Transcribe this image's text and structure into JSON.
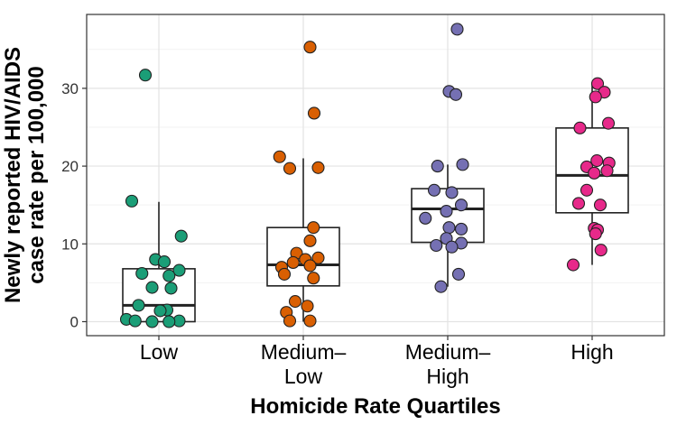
{
  "chart_data": {
    "type": "boxplot",
    "xlabel": "Homicide Rate Quartiles",
    "ylabel_lines": [
      "Newly reported HIV/AIDS",
      "case rate per 100,000"
    ],
    "ylim": [
      -1.8,
      39.5
    ],
    "yticks": [
      0,
      10,
      20,
      30
    ],
    "grid": true,
    "groups": [
      {
        "name_lines": [
          "Low"
        ],
        "color": "#1b9e77",
        "box": {
          "min": 0,
          "q1": 0,
          "median": 2.1,
          "q3": 6.8,
          "max": 15.4
        },
        "points": [
          {
            "value": 31.7,
            "offset": -0.2
          },
          {
            "value": 15.5,
            "offset": -0.4
          },
          {
            "value": 11.0,
            "offset": 0.33
          },
          {
            "value": 8.0,
            "offset": -0.05
          },
          {
            "value": 7.7,
            "offset": 0.08
          },
          {
            "value": 6.6,
            "offset": 0.3
          },
          {
            "value": 6.2,
            "offset": -0.25
          },
          {
            "value": 5.9,
            "offset": 0.15
          },
          {
            "value": 4.4,
            "offset": -0.1
          },
          {
            "value": 4.3,
            "offset": 0.18
          },
          {
            "value": 2.1,
            "offset": -0.3
          },
          {
            "value": 1.5,
            "offset": 0.12
          },
          {
            "value": 1.4,
            "offset": 0.02
          },
          {
            "value": 0.3,
            "offset": -0.48
          },
          {
            "value": 0.1,
            "offset": -0.35
          },
          {
            "value": 0.1,
            "offset": 0.3
          },
          {
            "value": 0.0,
            "offset": 0.15
          },
          {
            "value": 0.0,
            "offset": -0.1
          }
        ]
      },
      {
        "name_lines": [
          "Medium–",
          "Low"
        ],
        "color": "#d95f02",
        "box": {
          "min": 0,
          "q1": 4.6,
          "median": 7.3,
          "q3": 12.1,
          "max": 21.0
        },
        "points": [
          {
            "value": 35.3,
            "offset": 0.1
          },
          {
            "value": 26.8,
            "offset": 0.16
          },
          {
            "value": 21.2,
            "offset": -0.35
          },
          {
            "value": 19.8,
            "offset": 0.22
          },
          {
            "value": 19.7,
            "offset": -0.2
          },
          {
            "value": 12.1,
            "offset": 0.15
          },
          {
            "value": 10.4,
            "offset": 0.1
          },
          {
            "value": 8.8,
            "offset": -0.1
          },
          {
            "value": 8.2,
            "offset": 0.22
          },
          {
            "value": 8.0,
            "offset": 0.03
          },
          {
            "value": 7.6,
            "offset": -0.15
          },
          {
            "value": 7.2,
            "offset": 0.1
          },
          {
            "value": 7.0,
            "offset": -0.32
          },
          {
            "value": 6.1,
            "offset": -0.28
          },
          {
            "value": 5.6,
            "offset": 0.15
          },
          {
            "value": 2.6,
            "offset": -0.12
          },
          {
            "value": 2.0,
            "offset": 0.06
          },
          {
            "value": 1.2,
            "offset": -0.25
          },
          {
            "value": 0.1,
            "offset": -0.2
          },
          {
            "value": 0.1,
            "offset": 0.1
          }
        ]
      },
      {
        "name_lines": [
          "Medium–",
          "High"
        ],
        "color": "#7570b3",
        "box": {
          "min": 4.5,
          "q1": 10.2,
          "median": 14.5,
          "q3": 17.1,
          "max": 20.2
        },
        "points": [
          {
            "value": 37.6,
            "offset": 0.14
          },
          {
            "value": 29.6,
            "offset": 0.02
          },
          {
            "value": 29.2,
            "offset": 0.12
          },
          {
            "value": 20.2,
            "offset": 0.22
          },
          {
            "value": 20.0,
            "offset": -0.15
          },
          {
            "value": 16.9,
            "offset": -0.2
          },
          {
            "value": 16.6,
            "offset": 0.06
          },
          {
            "value": 15.0,
            "offset": 0.2
          },
          {
            "value": 14.2,
            "offset": -0.02
          },
          {
            "value": 13.3,
            "offset": -0.33
          },
          {
            "value": 12.1,
            "offset": 0.02
          },
          {
            "value": 11.9,
            "offset": 0.2
          },
          {
            "value": 10.7,
            "offset": -0.02
          },
          {
            "value": 10.1,
            "offset": 0.2
          },
          {
            "value": 9.8,
            "offset": -0.17
          },
          {
            "value": 9.6,
            "offset": 0.06
          },
          {
            "value": 6.1,
            "offset": 0.16
          },
          {
            "value": 4.5,
            "offset": -0.1
          }
        ]
      },
      {
        "name_lines": [
          "High"
        ],
        "color": "#e7298a",
        "box": {
          "min": 7.3,
          "q1": 14.0,
          "median": 18.8,
          "q3": 24.9,
          "max": 30.6
        },
        "points": [
          {
            "value": 30.6,
            "offset": 0.08
          },
          {
            "value": 29.5,
            "offset": 0.18
          },
          {
            "value": 28.9,
            "offset": 0.05
          },
          {
            "value": 25.5,
            "offset": 0.24
          },
          {
            "value": 24.9,
            "offset": -0.18
          },
          {
            "value": 20.7,
            "offset": 0.07
          },
          {
            "value": 20.4,
            "offset": 0.25
          },
          {
            "value": 19.9,
            "offset": -0.08
          },
          {
            "value": 19.4,
            "offset": 0.22
          },
          {
            "value": 19.1,
            "offset": 0.03
          },
          {
            "value": 16.9,
            "offset": -0.08
          },
          {
            "value": 15.2,
            "offset": -0.2
          },
          {
            "value": 15.0,
            "offset": 0.12
          },
          {
            "value": 12.0,
            "offset": 0.03
          },
          {
            "value": 11.8,
            "offset": 0.08
          },
          {
            "value": 11.3,
            "offset": 0.05
          },
          {
            "value": 9.2,
            "offset": 0.13
          },
          {
            "value": 7.3,
            "offset": -0.28
          }
        ]
      }
    ]
  }
}
